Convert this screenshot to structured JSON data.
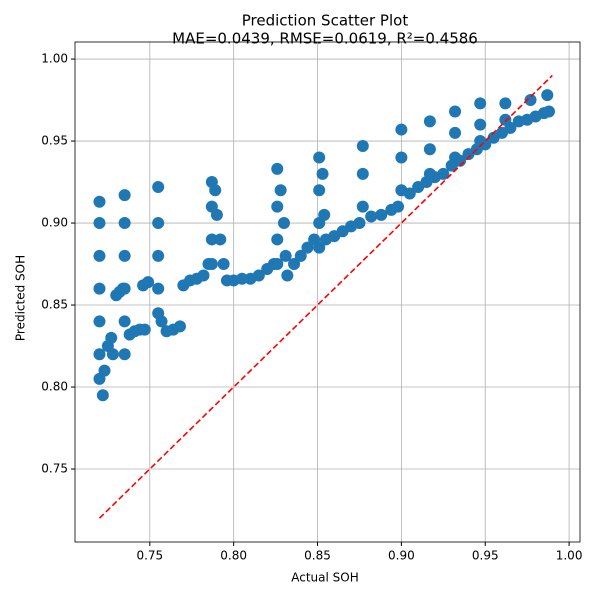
{
  "chart_data": {
    "type": "scatter",
    "title": "Prediction Scatter Plot",
    "subtitle": "MAE=0.0439, RMSE=0.0619, R²=0.4586",
    "x_label": "Actual SOH",
    "y_label": "Predicted SOH",
    "xlim": [
      0.7054,
      1.0065
    ],
    "ylim": [
      0.7055,
      1.0104
    ],
    "xticks": [
      0.75,
      {
        "value": 0.8,
        "label": "0.80"
      },
      0.85,
      {
        "value": 0.9,
        "label": "0.90"
      },
      0.95,
      {
        "value": 1.0,
        "label": "1.00"
      }
    ],
    "yticks": [
      0.75,
      {
        "value": 0.8,
        "label": "0.80"
      },
      0.85,
      {
        "value": 0.9,
        "label": "0.90"
      },
      0.95,
      {
        "value": 1.0,
        "label": "1.00"
      }
    ],
    "grid": true,
    "series": [
      {
        "color": "#1f77b4",
        "x": [
          0.72,
          0.72,
          0.72,
          0.72,
          0.72,
          0.72,
          0.72,
          0.722,
          0.723,
          0.725,
          0.727,
          0.728,
          0.73,
          0.732,
          0.734,
          0.735,
          0.735,
          0.735,
          0.735,
          0.735,
          0.735,
          0.738,
          0.741,
          0.744,
          0.747,
          0.746,
          0.749,
          0.755,
          0.755,
          0.755,
          0.755,
          0.755,
          0.757,
          0.76,
          0.764,
          0.768,
          0.77,
          0.774,
          0.778,
          0.782,
          0.785,
          0.787,
          0.787,
          0.787,
          0.787,
          0.789,
          0.79,
          0.792,
          0.794,
          0.796,
          0.8,
          0.805,
          0.81,
          0.815,
          0.82,
          0.824,
          0.826,
          0.826,
          0.826,
          0.826,
          0.828,
          0.83,
          0.831,
          0.832,
          0.836,
          0.84,
          0.844,
          0.848,
          0.851,
          0.851,
          0.851,
          0.851,
          0.853,
          0.854,
          0.855,
          0.86,
          0.865,
          0.87,
          0.875,
          0.877,
          0.877,
          0.877,
          0.882,
          0.888,
          0.894,
          0.898,
          0.9,
          0.9,
          0.9,
          0.905,
          0.91,
          0.915,
          0.917,
          0.917,
          0.917,
          0.92,
          0.925,
          0.93,
          0.932,
          0.932,
          0.932,
          0.935,
          0.94,
          0.945,
          0.947,
          0.947,
          0.947,
          0.95,
          0.955,
          0.96,
          0.962,
          0.962,
          0.965,
          0.97,
          0.975,
          0.977,
          0.98,
          0.985,
          0.988,
          0.987
        ],
        "y": [
          0.913,
          0.9,
          0.88,
          0.86,
          0.84,
          0.82,
          0.805,
          0.795,
          0.81,
          0.825,
          0.83,
          0.82,
          0.856,
          0.858,
          0.86,
          0.917,
          0.9,
          0.88,
          0.86,
          0.84,
          0.82,
          0.832,
          0.834,
          0.835,
          0.835,
          0.862,
          0.864,
          0.922,
          0.9,
          0.88,
          0.86,
          0.845,
          0.84,
          0.834,
          0.835,
          0.837,
          0.862,
          0.865,
          0.866,
          0.868,
          0.875,
          0.925,
          0.91,
          0.89,
          0.875,
          0.92,
          0.905,
          0.89,
          0.875,
          0.865,
          0.865,
          0.866,
          0.866,
          0.868,
          0.872,
          0.875,
          0.933,
          0.91,
          0.89,
          0.875,
          0.92,
          0.9,
          0.88,
          0.868,
          0.875,
          0.88,
          0.885,
          0.89,
          0.94,
          0.92,
          0.9,
          0.885,
          0.93,
          0.905,
          0.89,
          0.892,
          0.895,
          0.898,
          0.9,
          0.947,
          0.93,
          0.91,
          0.904,
          0.905,
          0.908,
          0.91,
          0.957,
          0.94,
          0.92,
          0.918,
          0.922,
          0.925,
          0.962,
          0.945,
          0.93,
          0.928,
          0.93,
          0.935,
          0.968,
          0.955,
          0.94,
          0.938,
          0.942,
          0.945,
          0.973,
          0.96,
          0.95,
          0.948,
          0.952,
          0.955,
          0.973,
          0.963,
          0.958,
          0.962,
          0.963,
          0.975,
          0.965,
          0.967,
          0.968,
          0.978
        ]
      }
    ],
    "lines": [
      {
        "color": "#ff0000",
        "style": "dashed",
        "x": [
          0.72,
          0.99
        ],
        "y": [
          0.72,
          0.99
        ]
      }
    ]
  }
}
